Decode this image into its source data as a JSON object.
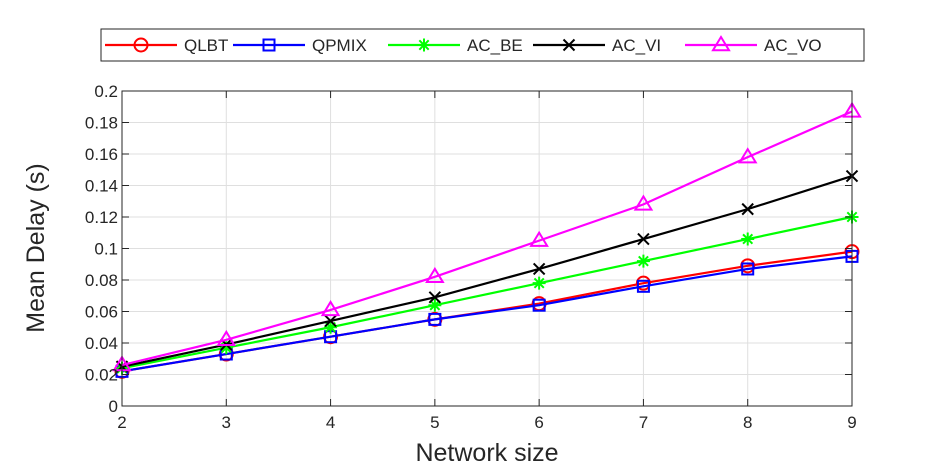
{
  "chart_data": {
    "type": "line",
    "title": "",
    "xlabel": "Network size",
    "ylabel": "Mean Delay (s)",
    "x": [
      2,
      3,
      4,
      5,
      6,
      7,
      8,
      9
    ],
    "xlim": [
      2,
      9
    ],
    "ylim": [
      0,
      0.2
    ],
    "xticks": [
      2,
      3,
      4,
      5,
      6,
      7,
      8,
      9
    ],
    "yticks": [
      0,
      0.02,
      0.04,
      0.06,
      0.08,
      0.1,
      0.12,
      0.14,
      0.16,
      0.18,
      0.2
    ],
    "ytick_labels": [
      "0",
      "0.02",
      "0.04",
      "0.06",
      "0.08",
      "0.1",
      "0.12",
      "0.14",
      "0.16",
      "0.18",
      "0.2"
    ],
    "grid": true,
    "legend_position": "top, outside, horizontal",
    "series": [
      {
        "name": "QLBT",
        "color": "#ff0000",
        "marker": "circle",
        "values": [
          0.022,
          0.033,
          0.044,
          0.055,
          0.065,
          0.078,
          0.089,
          0.098
        ]
      },
      {
        "name": "QPMIX",
        "color": "#0000ff",
        "marker": "square",
        "values": [
          0.022,
          0.033,
          0.044,
          0.055,
          0.064,
          0.076,
          0.087,
          0.095
        ]
      },
      {
        "name": "AC_BE",
        "color": "#00ff00",
        "marker": "asterisk",
        "values": [
          0.024,
          0.037,
          0.05,
          0.064,
          0.078,
          0.092,
          0.106,
          0.12
        ]
      },
      {
        "name": "AC_VI",
        "color": "#000000",
        "marker": "x",
        "values": [
          0.025,
          0.039,
          0.054,
          0.069,
          0.087,
          0.106,
          0.125,
          0.146
        ]
      },
      {
        "name": "AC_VO",
        "color": "#ff00ff",
        "marker": "triangle",
        "values": [
          0.026,
          0.042,
          0.061,
          0.082,
          0.105,
          0.128,
          0.158,
          0.187
        ]
      }
    ]
  }
}
